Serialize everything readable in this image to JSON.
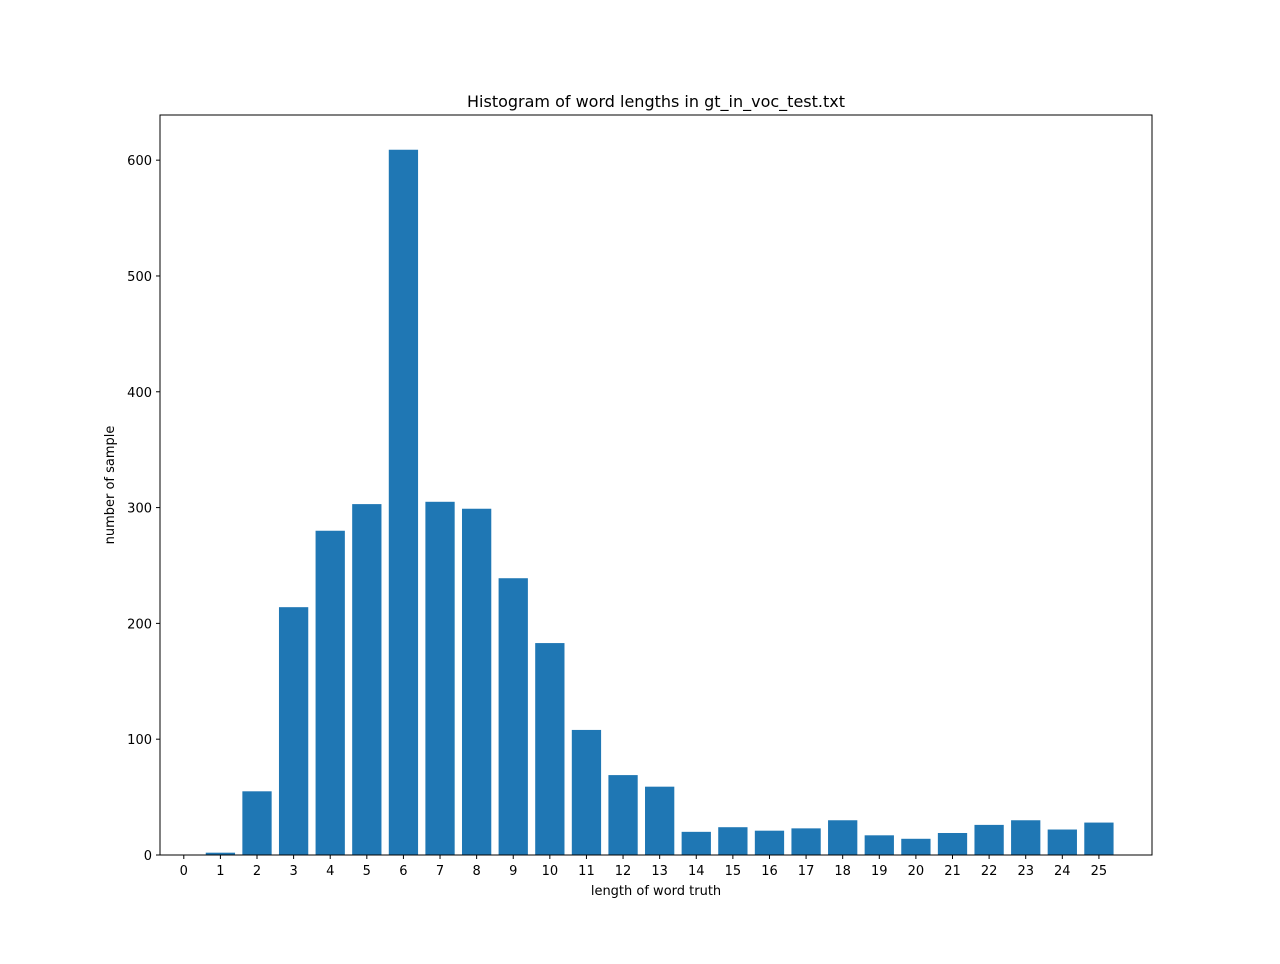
{
  "chart_data": {
    "type": "bar",
    "title": "Histogram of word lengths in gt_in_voc_test.txt",
    "xlabel": "length of word truth",
    "ylabel": "number of sample",
    "categories": [
      "0",
      "1",
      "2",
      "3",
      "4",
      "5",
      "6",
      "7",
      "8",
      "9",
      "10",
      "11",
      "12",
      "13",
      "14",
      "15",
      "16",
      "17",
      "18",
      "19",
      "20",
      "21",
      "22",
      "23",
      "24",
      "25"
    ],
    "values": [
      0,
      2,
      55,
      214,
      280,
      303,
      609,
      305,
      299,
      239,
      183,
      108,
      69,
      59,
      20,
      24,
      21,
      23,
      30,
      17,
      14,
      19,
      26,
      30,
      22,
      28
    ],
    "xlim": [
      -0.65,
      26.45
    ],
    "ylim": [
      0,
      639
    ],
    "yticks": [
      0,
      100,
      200,
      300,
      400,
      500,
      600
    ],
    "bar_color": "#1f77b4",
    "grid": false,
    "legend": "none"
  }
}
